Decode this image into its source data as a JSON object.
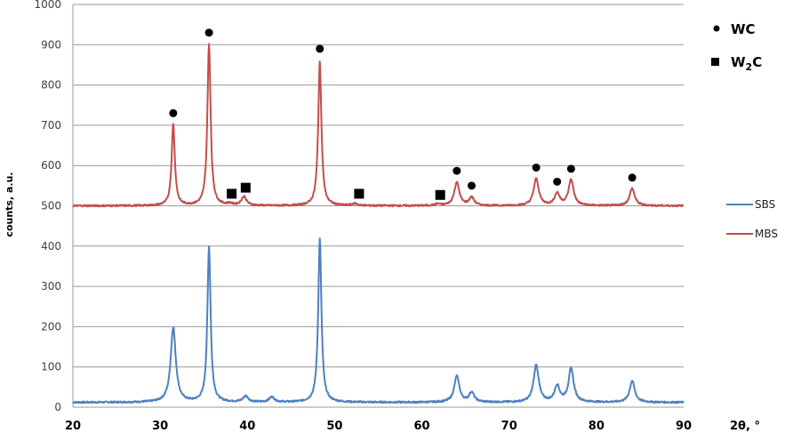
{
  "chart_data": {
    "type": "line",
    "title": "",
    "xlabel": "2θ, °",
    "ylabel": "counts, a.u.",
    "xlim": [
      20,
      90
    ],
    "ylim": [
      0,
      1000
    ],
    "x_ticks": [
      20,
      30,
      40,
      50,
      60,
      70,
      80,
      90
    ],
    "y_ticks": [
      0,
      100,
      200,
      300,
      400,
      500,
      600,
      700,
      800,
      900,
      1000
    ],
    "grid": "horizontal",
    "legend_position": "right",
    "series": [
      {
        "name": "SBS",
        "color": "#4F81BD",
        "baseline": 12,
        "peaks": [
          {
            "x": 31.5,
            "y": 198
          },
          {
            "x": 35.6,
            "y": 398
          },
          {
            "x": 39.8,
            "y": 27
          },
          {
            "x": 42.8,
            "y": 25
          },
          {
            "x": 48.3,
            "y": 420
          },
          {
            "x": 64.0,
            "y": 77
          },
          {
            "x": 65.7,
            "y": 36
          },
          {
            "x": 73.1,
            "y": 105
          },
          {
            "x": 75.5,
            "y": 52
          },
          {
            "x": 77.1,
            "y": 95
          },
          {
            "x": 84.1,
            "y": 65
          }
        ]
      },
      {
        "name": "MBS",
        "color": "#C0504D",
        "baseline": 500,
        "peaks": [
          {
            "x": 31.5,
            "y": 703
          },
          {
            "x": 35.6,
            "y": 900
          },
          {
            "x": 38.0,
            "y": 504
          },
          {
            "x": 39.6,
            "y": 522
          },
          {
            "x": 48.3,
            "y": 858
          },
          {
            "x": 52.3,
            "y": 505
          },
          {
            "x": 61.8,
            "y": 504
          },
          {
            "x": 64.0,
            "y": 558
          },
          {
            "x": 65.7,
            "y": 520
          },
          {
            "x": 73.1,
            "y": 567
          },
          {
            "x": 75.5,
            "y": 530
          },
          {
            "x": 77.1,
            "y": 564
          },
          {
            "x": 84.1,
            "y": 543
          }
        ]
      }
    ],
    "annotations": {
      "WC_markers": [
        {
          "x": 31.5,
          "y": 730
        },
        {
          "x": 35.6,
          "y": 930
        },
        {
          "x": 48.3,
          "y": 890
        },
        {
          "x": 64.0,
          "y": 587
        },
        {
          "x": 65.7,
          "y": 550
        },
        {
          "x": 73.1,
          "y": 595
        },
        {
          "x": 75.5,
          "y": 560
        },
        {
          "x": 77.1,
          "y": 592
        },
        {
          "x": 84.1,
          "y": 570
        }
      ],
      "W2C_markers": [
        {
          "x": 38.2,
          "y": 530
        },
        {
          "x": 39.8,
          "y": 545
        },
        {
          "x": 52.8,
          "y": 530
        },
        {
          "x": 62.1,
          "y": 527
        }
      ]
    }
  },
  "labels": {
    "xlabel": "2θ, °",
    "ylabel": "counts, a.u.",
    "phase_wc": "WC",
    "phase_w2c_main": "W",
    "phase_w2c_sub": "2",
    "phase_w2c_end": "C",
    "legend_sbs": "SBS",
    "legend_mbs": "MBS"
  }
}
